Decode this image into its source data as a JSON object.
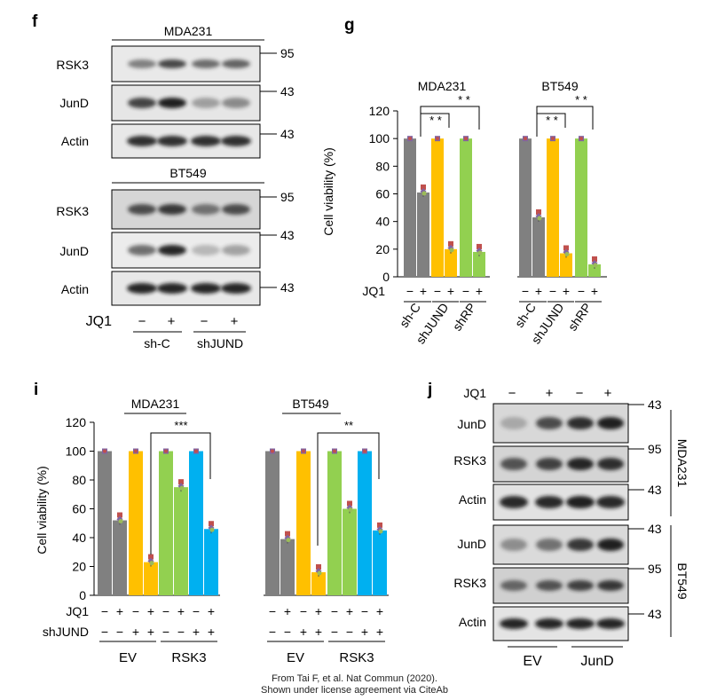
{
  "panels": {
    "f": {
      "letter": "f",
      "top_cell": "MDA231",
      "bottom_cell": "BT549",
      "rows": [
        "RSK3",
        "JunD",
        "Actin"
      ],
      "mw": [
        "95",
        "43",
        "43"
      ],
      "jq1": "JQ1",
      "jq1_signs": [
        "−",
        "+",
        "−",
        "+"
      ],
      "groups": [
        "sh-C",
        "shJUND"
      ]
    },
    "g": {
      "letter": "g",
      "jq1": "JQ1",
      "jq1_signs": [
        "−",
        "+",
        "−",
        "+",
        "−",
        "+"
      ],
      "groups": [
        "sh-C",
        "shJUND",
        "shRP"
      ],
      "sig_short": "* *",
      "sig_long": "* *"
    },
    "i": {
      "letter": "i",
      "jq1": "JQ1",
      "shjund": "shJUND",
      "jq1_signs": [
        "−",
        "+",
        "−",
        "+",
        "−",
        "+",
        "−",
        "+"
      ],
      "shjund_signs": [
        "−",
        "−",
        "+",
        "+",
        "−",
        "−",
        "+",
        "+"
      ],
      "groups": [
        "EV",
        "RSK3"
      ],
      "sig_left": "***",
      "sig_right": "**"
    },
    "j": {
      "letter": "j",
      "jq1": "JQ1",
      "jq1_signs": [
        "−",
        "+",
        "−",
        "+"
      ],
      "rows": [
        "JunD",
        "RSK3",
        "Actin"
      ],
      "mw": [
        "43",
        "95",
        "43"
      ],
      "top_cell": "MDA231",
      "bottom_cell": "BT549",
      "groups": [
        "EV",
        "JunD"
      ]
    }
  },
  "caption": {
    "line1": "From Tai F, et al. Nat Commun (2020).",
    "line2": "Shown under license agreement via CiteAb"
  },
  "colors": {
    "gray": "#808080",
    "orange": "#FFC000",
    "green": "#92D050",
    "blue": "#00B0F0"
  },
  "chart_data": [
    {
      "panel": "g",
      "type": "bar",
      "ylabel": "Cell viability (%)",
      "ylim": [
        0,
        120
      ],
      "yticks": [
        0,
        20,
        40,
        60,
        80,
        100,
        120
      ],
      "series": [
        {
          "name": "MDA231",
          "values": [
            100,
            61,
            100,
            20,
            100,
            18
          ],
          "colors": [
            "gray",
            "gray",
            "orange",
            "orange",
            "green",
            "green"
          ]
        },
        {
          "name": "BT549",
          "values": [
            100,
            43,
            100,
            17,
            100,
            9
          ],
          "colors": [
            "gray",
            "gray",
            "orange",
            "orange",
            "green",
            "green"
          ]
        }
      ]
    },
    {
      "panel": "i",
      "type": "bar",
      "ylabel": "Cell viability (%)",
      "ylim": [
        0,
        120
      ],
      "yticks": [
        0,
        20,
        40,
        60,
        80,
        100,
        120
      ],
      "series": [
        {
          "name": "MDA231",
          "values": [
            100,
            52,
            100,
            23,
            100,
            75,
            100,
            46
          ],
          "colors": [
            "gray",
            "gray",
            "orange",
            "orange",
            "green",
            "green",
            "blue",
            "blue"
          ]
        },
        {
          "name": "BT549",
          "values": [
            100,
            39,
            100,
            16,
            100,
            60,
            100,
            45
          ],
          "colors": [
            "gray",
            "gray",
            "orange",
            "orange",
            "green",
            "green",
            "blue",
            "blue"
          ]
        }
      ]
    }
  ]
}
